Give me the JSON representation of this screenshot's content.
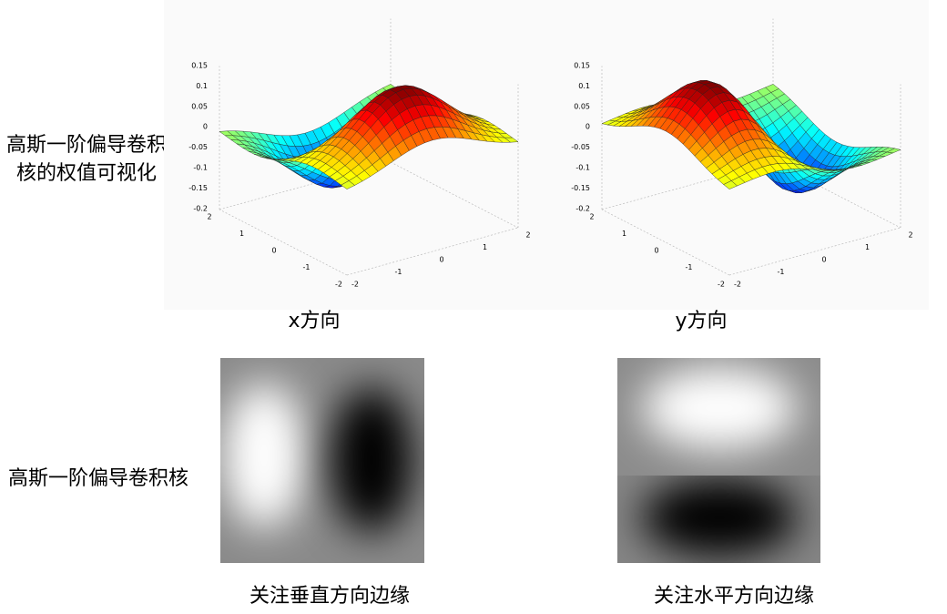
{
  "row_labels": [
    "高斯一阶偏导卷积核的权值可视化",
    "高斯一阶偏导卷积核"
  ],
  "plots": [
    {
      "caption": "x方向",
      "zticks": [
        "0.15",
        "0.1",
        "0.05",
        "0",
        "-0.05",
        "-0.1",
        "-0.15",
        "-0.2"
      ],
      "xticks": [
        "-2",
        "-1",
        "0",
        "1",
        "2"
      ],
      "yticks": [
        "2",
        "1",
        "0",
        "-1",
        "-2"
      ]
    },
    {
      "caption": "y方向",
      "zticks": [
        "0.15",
        "0.1",
        "0.05",
        "0",
        "-0.05",
        "-0.1",
        "-0.15",
        "-0.2"
      ],
      "xticks": [
        "-2",
        "-1",
        "0",
        "1",
        "2"
      ],
      "yticks": [
        "2",
        "1",
        "0",
        "-1",
        "-2"
      ]
    }
  ],
  "images": [
    {
      "caption": "关注垂直方向边缘"
    },
    {
      "caption": "关注水平方向边缘"
    }
  ]
}
